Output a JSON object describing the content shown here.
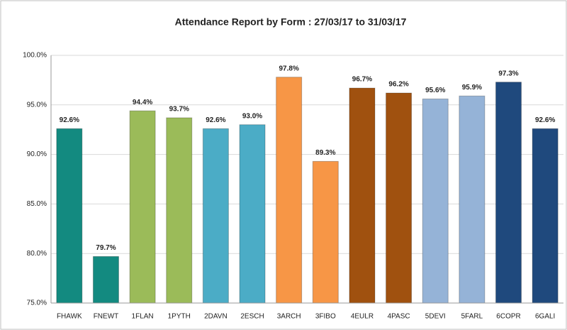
{
  "chart_data": {
    "type": "bar",
    "title": "Attendance Report by  Form : 27/03/17 to 31/03/17",
    "categories": [
      "FHAWK",
      "FNEWT",
      "1FLAN",
      "1PYTH",
      "2DAVN",
      "2ESCH",
      "3ARCH",
      "3FIBO",
      "4EULR",
      "4PASC",
      "5DEVI",
      "5FARL",
      "6COPR",
      "6GALI"
    ],
    "values": [
      92.6,
      79.7,
      94.4,
      93.7,
      92.6,
      93.0,
      97.8,
      89.3,
      96.7,
      96.2,
      95.6,
      95.9,
      97.3,
      92.6
    ],
    "value_labels": [
      "92.6%",
      "79.7%",
      "94.4%",
      "93.7%",
      "92.6%",
      "93.0%",
      "97.8%",
      "89.3%",
      "96.7%",
      "96.2%",
      "95.6%",
      "95.9%",
      "97.3%",
      "92.6%"
    ],
    "colors": [
      "#138a80",
      "#138a80",
      "#9bbb59",
      "#9bbb59",
      "#4bacc6",
      "#4bacc6",
      "#f79646",
      "#f79646",
      "#a0510f",
      "#a0510f",
      "#95b3d7",
      "#95b3d7",
      "#1f497d",
      "#1f497d"
    ],
    "ylim": [
      75,
      100
    ],
    "yticks": [
      {
        "value": 75,
        "label": "75.0%"
      },
      {
        "value": 80,
        "label": "80.0%"
      },
      {
        "value": 85,
        "label": "85.0%"
      },
      {
        "value": 90,
        "label": "90.0%"
      },
      {
        "value": 95,
        "label": "95.0%"
      },
      {
        "value": 100,
        "label": "100.0%"
      }
    ],
    "grid": true
  }
}
